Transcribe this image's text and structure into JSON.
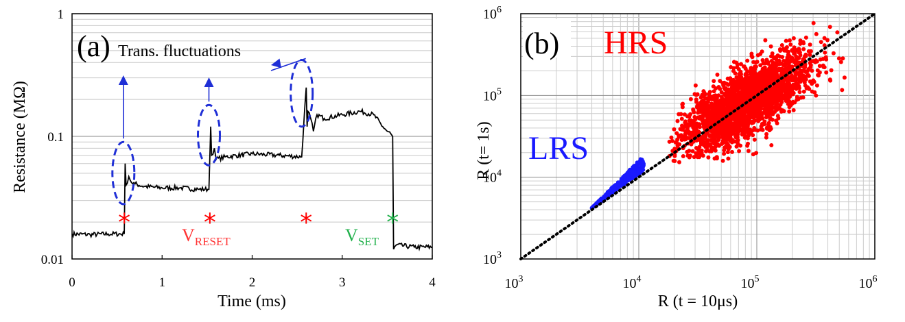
{
  "chart_data": [
    {
      "type": "line",
      "panel_label": "(a)",
      "xlabel": "Time (ms)",
      "ylabel": "Resistance (MΩ)",
      "xlim": [
        0,
        4
      ],
      "ylim": [
        0.01,
        1
      ],
      "y_scale": "log",
      "x_ticks": [
        "0",
        "1",
        "2",
        "3",
        "4"
      ],
      "y_ticks": [
        {
          "value": 0.01,
          "label": "0.01"
        },
        {
          "value": 0.1,
          "label": "0.1"
        },
        {
          "value": 1,
          "label": "1"
        }
      ],
      "grid": "horizontal",
      "series": [
        {
          "color": "#000000",
          "x": [
            0,
            0.2,
            0.4,
            0.58,
            0.59,
            0.6,
            0.63,
            0.66,
            0.7,
            0.8,
            1.0,
            1.2,
            1.4,
            1.52,
            1.54,
            1.55,
            1.58,
            1.6,
            1.7,
            2.0,
            2.3,
            2.55,
            2.6,
            2.61,
            2.62,
            2.65,
            2.68,
            2.72,
            2.8,
            3.0,
            3.2,
            3.35,
            3.45,
            3.5,
            3.54,
            3.56,
            3.57,
            3.6,
            3.8,
            4.0
          ],
          "y": [
            0.016,
            0.0158,
            0.016,
            0.016,
            0.06,
            0.04,
            0.047,
            0.042,
            0.041,
            0.039,
            0.038,
            0.038,
            0.037,
            0.037,
            0.12,
            0.07,
            0.08,
            0.065,
            0.068,
            0.072,
            0.07,
            0.068,
            0.25,
            0.12,
            0.16,
            0.14,
            0.11,
            0.15,
            0.14,
            0.15,
            0.16,
            0.15,
            0.12,
            0.11,
            0.105,
            0.1,
            0.012,
            0.013,
            0.0125,
            0.0125
          ]
        }
      ],
      "markers": [
        {
          "x": 0.58,
          "y": 0.021,
          "color": "#ff0000",
          "label": "*"
        },
        {
          "x": 1.53,
          "y": 0.021,
          "color": "#ff0000",
          "label": "*"
        },
        {
          "x": 2.6,
          "y": 0.021,
          "color": "#ff0000",
          "label": "*"
        },
        {
          "x": 3.56,
          "y": 0.021,
          "color": "#22b14c",
          "label": "*"
        }
      ],
      "annotations": {
        "fluctuations": "Trans. fluctuations",
        "v_reset_main": "V",
        "v_reset_sub": "RESET",
        "v_set_main": "V",
        "v_set_sub": "SET",
        "v_reset_color": "#ff3333",
        "v_set_color": "#22b14c",
        "highlight_color": "#1f2fd6"
      },
      "highlights": [
        {
          "x": 0.57,
          "y_low": 0.028,
          "y_high": 0.09
        },
        {
          "x": 1.52,
          "y_low": 0.058,
          "y_high": 0.18
        },
        {
          "x": 2.55,
          "y_low": 0.12,
          "y_high": 0.42
        }
      ]
    },
    {
      "type": "scatter",
      "panel_label": "(b)",
      "xlabel": "R (t = 10μs)",
      "ylabel": "R (t= 1s)",
      "x_scale": "log",
      "y_scale": "log",
      "xlim": [
        1000,
        1000000
      ],
      "ylim": [
        1000,
        1000000
      ],
      "x_ticks": [
        {
          "base": "10",
          "exp": "3"
        },
        {
          "base": "10",
          "exp": "4"
        },
        {
          "base": "10",
          "exp": "5"
        },
        {
          "base": "10",
          "exp": "6"
        }
      ],
      "y_ticks": [
        {
          "base": "10",
          "exp": "3"
        },
        {
          "base": "10",
          "exp": "4"
        },
        {
          "base": "10",
          "exp": "5"
        },
        {
          "base": "10",
          "exp": "6"
        }
      ],
      "grid": "both",
      "series": [
        {
          "name": "HRS",
          "color": "#ff0000",
          "center": [
            80000,
            80000
          ],
          "x_range": [
            18000,
            700000
          ],
          "y_range": [
            15000,
            900000
          ]
        },
        {
          "name": "LRS",
          "color": "#1a1aff",
          "x_range": [
            4000,
            11000
          ],
          "y_range": [
            4200,
            17000
          ]
        }
      ],
      "reference_line": {
        "style": "dotted",
        "color": "#000000",
        "x": [
          1000,
          1000000
        ],
        "y": [
          1000,
          1000000
        ]
      }
    }
  ]
}
